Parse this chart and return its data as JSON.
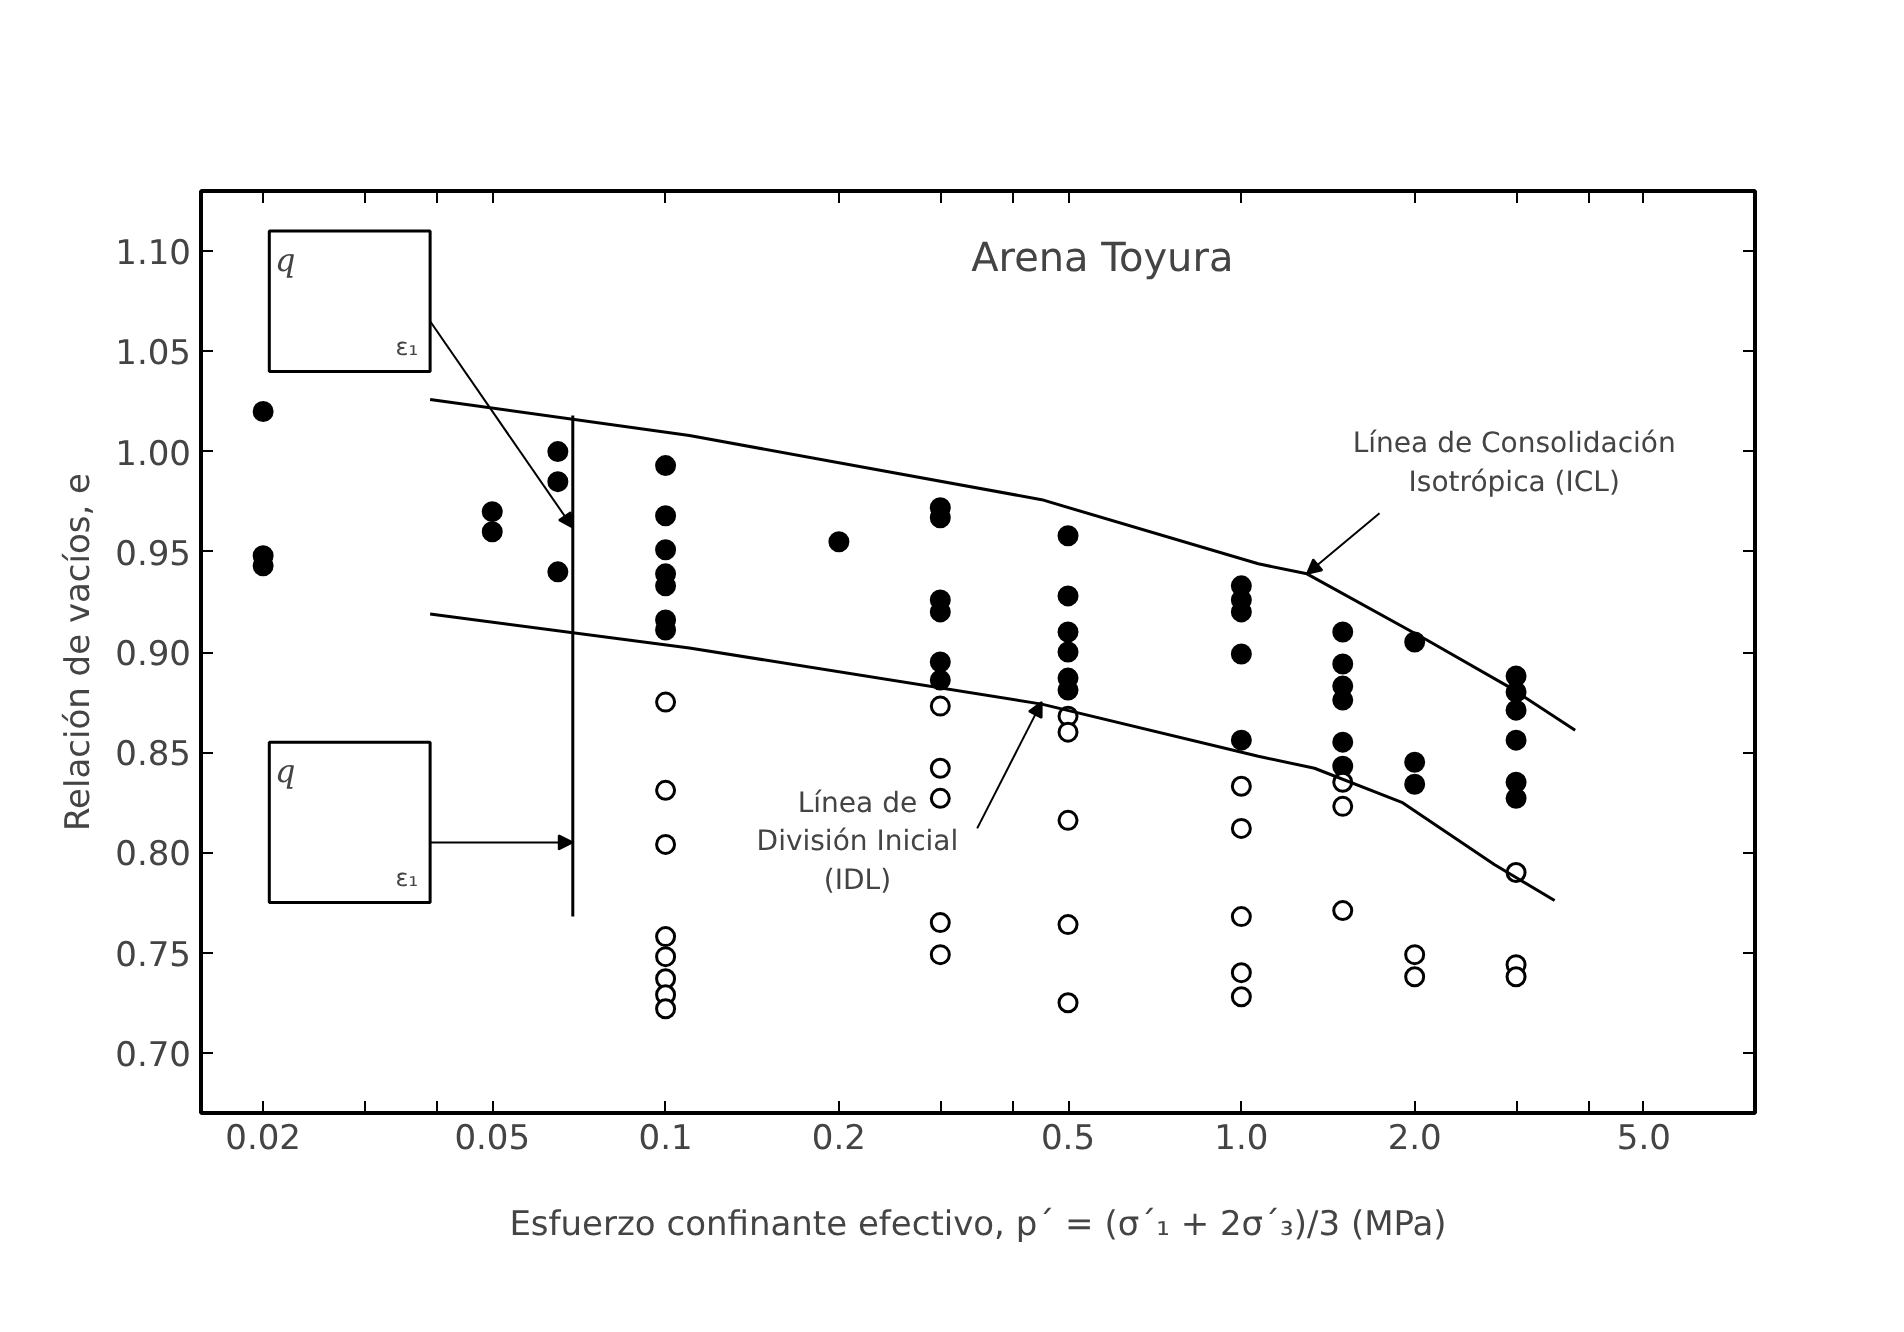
{
  "chart_data": {
    "type": "scatter",
    "title": "Arena Toyura",
    "xlabel": "Esfuerzo confinante efectivo, p´ = (σ´₁ + 2σ´₃)/3 (MPa)",
    "ylabel": "Relación de vacíos, e",
    "log": "x",
    "grid": false,
    "marker": "circle",
    "xlim": [
      0.0156,
      7.8
    ],
    "ylim": [
      0.67,
      1.13
    ],
    "xticks": [
      0.02,
      {
        "value": 0.03,
        "label": null
      },
      {
        "value": 0.04,
        "label": null
      },
      0.05,
      0.1,
      0.2,
      {
        "value": 0.3,
        "label": null
      },
      {
        "value": 0.4,
        "label": null
      },
      0.5,
      {
        "value": 1.0,
        "label": "1.0"
      },
      {
        "value": 2.0,
        "label": "2.0"
      },
      {
        "value": 3.0,
        "label": null
      },
      {
        "value": 4.0,
        "label": null
      },
      {
        "value": 5.0,
        "label": "5.0"
      }
    ],
    "yticks": [
      {
        "value": 0.7,
        "label": "0.70"
      },
      0.75,
      {
        "value": 0.8,
        "label": "0.80"
      },
      0.85,
      {
        "value": 0.9,
        "label": "0.90"
      },
      0.95,
      {
        "value": 1.0,
        "label": "1.00"
      },
      1.05,
      {
        "value": 1.1,
        "label": "1.10"
      }
    ],
    "series": [
      {
        "color": "#000000",
        "x": [
          0.02,
          0.02,
          0.02,
          0.05,
          0.05,
          0.065,
          0.065,
          0.065,
          0.1,
          0.1,
          0.1,
          0.1,
          0.1,
          0.1,
          0.1,
          0.2,
          0.3,
          0.3,
          0.3,
          0.3,
          0.3,
          0.3,
          0.5,
          0.5,
          0.5,
          0.5,
          0.5,
          0.5,
          1.0,
          1.0,
          1.0,
          1.0,
          1.0,
          1.5,
          1.5,
          1.5,
          1.5,
          1.5,
          1.5,
          2.0,
          2.0,
          2.0,
          3.0,
          3.0,
          3.0,
          3.0,
          3.0,
          3.0
        ],
        "values": [
          1.02,
          0.948,
          0.943,
          0.97,
          0.96,
          1.0,
          0.985,
          0.94,
          0.993,
          0.968,
          0.951,
          0.939,
          0.933,
          0.916,
          0.911,
          0.955,
          0.972,
          0.967,
          0.926,
          0.92,
          0.895,
          0.886,
          0.958,
          0.928,
          0.91,
          0.9,
          0.887,
          0.881,
          0.933,
          0.926,
          0.92,
          0.899,
          0.856,
          0.91,
          0.894,
          0.883,
          0.876,
          0.855,
          0.843,
          0.905,
          0.845,
          0.834,
          0.888,
          0.88,
          0.871,
          0.856,
          0.835,
          0.827
        ]
      },
      {
        "color": "#ffffff",
        "x": [
          0.1,
          0.1,
          0.1,
          0.1,
          0.1,
          0.1,
          0.1,
          0.1,
          0.3,
          0.3,
          0.3,
          0.3,
          0.3,
          0.5,
          0.5,
          0.5,
          0.5,
          0.5,
          1.0,
          1.0,
          1.0,
          1.0,
          1.0,
          1.5,
          1.5,
          1.5,
          2.0,
          2.0,
          3.0,
          3.0,
          3.0
        ],
        "values": [
          0.875,
          0.831,
          0.804,
          0.758,
          0.748,
          0.737,
          0.729,
          0.722,
          0.873,
          0.842,
          0.827,
          0.765,
          0.749,
          0.868,
          0.86,
          0.816,
          0.764,
          0.725,
          0.833,
          0.812,
          0.768,
          0.74,
          0.728,
          0.835,
          0.823,
          0.771,
          0.749,
          0.738,
          0.79,
          0.744,
          0.738
        ]
      },
      {
        "type": "line",
        "marker": "none",
        "color": "#000000",
        "x": [
          0.039,
          0.11,
          0.45,
          1.07,
          1.3,
          2.1,
          2.9,
          3.8
        ],
        "values": [
          1.026,
          1.008,
          0.976,
          0.944,
          0.939,
          0.906,
          0.883,
          0.861
        ]
      },
      {
        "type": "line",
        "marker": "none",
        "color": "#000000",
        "x": [
          0.039,
          0.11,
          0.45,
          1.07,
          1.34,
          1.9,
          2.75,
          3.5
        ],
        "values": [
          0.919,
          0.902,
          0.874,
          0.848,
          0.842,
          0.825,
          0.794,
          0.776
        ]
      },
      {
        "type": "line",
        "marker": "none",
        "color": "#000000",
        "x": [
          0.069,
          0.069
        ],
        "values": [
          1.018,
          0.768
        ]
      }
    ],
    "annotations": [
      {
        "text": "Línea de Consolidación\nIsotrópica (ICL)",
        "x": 1.3,
        "y": 0.939
      },
      {
        "text": "Línea de\nDivisión Inicial\n(IDL)",
        "x": 0.45,
        "y": 0.875
      },
      "q",
      {
        "text": "ε₁",
        "x": 0.069,
        "y": 0.962
      },
      "q",
      {
        "text": "ε₁",
        "x": 0.069,
        "y": 0.805
      }
    ]
  }
}
